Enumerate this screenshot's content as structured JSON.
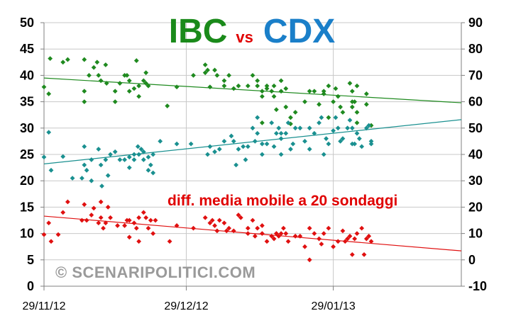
{
  "chart_data": {
    "type": "scatter",
    "title": {
      "left": "IBC",
      "mid": "vs",
      "right": "CDX",
      "left_color": "#1a8a1a",
      "mid_color": "#e00000",
      "right_color": "#1a7fc9"
    },
    "annotation": "diff. media mobile a 20 sondaggi",
    "annotation_color": "#e00000",
    "watermark": "© SCENARIPOLITICI.COM",
    "x_tick_labels": [
      "29/11/12",
      "29/12/12",
      "29/01/13"
    ],
    "x_tick_days": [
      0,
      30,
      61
    ],
    "xlim_days": [
      0,
      88
    ],
    "left_axis": {
      "ylim": [
        0,
        50
      ],
      "ticks": [
        0,
        5,
        10,
        15,
        20,
        25,
        30,
        35,
        40,
        45,
        50
      ]
    },
    "right_axis": {
      "ylim": [
        -10,
        90
      ],
      "ticks": [
        -10,
        0,
        10,
        20,
        30,
        40,
        50,
        60,
        70,
        80,
        90
      ]
    },
    "grid": true,
    "series": [
      {
        "color": "#1f8a1f",
        "axis": "left",
        "trend": [
          [
            0,
            39.5
          ],
          [
            88,
            34.8
          ]
        ],
        "points": [
          [
            0,
            37.8
          ],
          [
            1,
            36.5
          ],
          [
            1.3,
            43.2
          ],
          [
            4,
            42.5
          ],
          [
            5,
            43
          ],
          [
            8.5,
            43
          ],
          [
            8.5,
            37
          ],
          [
            8.5,
            35
          ],
          [
            9.5,
            40
          ],
          [
            10.5,
            41.5
          ],
          [
            11.2,
            42.5
          ],
          [
            11.5,
            40
          ],
          [
            12,
            39
          ],
          [
            13,
            42
          ],
          [
            13.2,
            38.5
          ],
          [
            16,
            38.5
          ],
          [
            15,
            37
          ],
          [
            15,
            35
          ],
          [
            17,
            40
          ],
          [
            18,
            39
          ],
          [
            17.5,
            40
          ],
          [
            18,
            37
          ],
          [
            19,
            37.5
          ],
          [
            19.5,
            42.8
          ],
          [
            20,
            38
          ],
          [
            21,
            39
          ],
          [
            21.5,
            40.5
          ],
          [
            20,
            36
          ],
          [
            21.5,
            38.5
          ],
          [
            22,
            38
          ],
          [
            26,
            34.2
          ],
          [
            28,
            37.8
          ],
          [
            31.5,
            40
          ],
          [
            34,
            42
          ],
          [
            34.5,
            41
          ],
          [
            34,
            40.5
          ],
          [
            36,
            41
          ],
          [
            36.5,
            40
          ],
          [
            35,
            37.8
          ],
          [
            38,
            39
          ],
          [
            38,
            38
          ],
          [
            39,
            40
          ],
          [
            40,
            37.5
          ],
          [
            41,
            38
          ],
          [
            43,
            38
          ],
          [
            44,
            40
          ],
          [
            45,
            39
          ],
          [
            45,
            38
          ],
          [
            46,
            37
          ],
          [
            46,
            36
          ],
          [
            47,
            38
          ],
          [
            47,
            37.5
          ],
          [
            48,
            37
          ],
          [
            48.5,
            38
          ],
          [
            46,
            31
          ],
          [
            48.5,
            36
          ],
          [
            49,
            33.5
          ],
          [
            50,
            39
          ],
          [
            50,
            37
          ],
          [
            51,
            37.5
          ],
          [
            51,
            34
          ],
          [
            52,
            32
          ],
          [
            52,
            30.8
          ],
          [
            53,
            33
          ],
          [
            55,
            35
          ],
          [
            56,
            37
          ],
          [
            57,
            37
          ],
          [
            58,
            34.5
          ],
          [
            59,
            37
          ],
          [
            59,
            36.5
          ],
          [
            60,
            38
          ],
          [
            60,
            32
          ],
          [
            61,
            35
          ],
          [
            61.5,
            37.5
          ],
          [
            62,
            36
          ],
          [
            62.5,
            34
          ],
          [
            63,
            33
          ],
          [
            64.5,
            38.5
          ],
          [
            65,
            37
          ],
          [
            65,
            35
          ],
          [
            65,
            34
          ],
          [
            65.5,
            35
          ],
          [
            66,
            31
          ],
          [
            66,
            33
          ],
          [
            66,
            38
          ],
          [
            68,
            36.5
          ],
          [
            68,
            34.5
          ],
          [
            69,
            30.5
          ]
        ]
      },
      {
        "color": "#1a9090",
        "axis": "left",
        "trend": [
          [
            0,
            23.2
          ],
          [
            88,
            31.6
          ]
        ],
        "points": [
          [
            0,
            24.5
          ],
          [
            1,
            29.2
          ],
          [
            1.5,
            22
          ],
          [
            4,
            24.6
          ],
          [
            6,
            20.5
          ],
          [
            8,
            20.5
          ],
          [
            8.5,
            26.5
          ],
          [
            8.5,
            23
          ],
          [
            9,
            22
          ],
          [
            10,
            24
          ],
          [
            10,
            20
          ],
          [
            11.5,
            26
          ],
          [
            12,
            23
          ],
          [
            12.2,
            19
          ],
          [
            13,
            24
          ],
          [
            13.5,
            21
          ],
          [
            14,
            25
          ],
          [
            15,
            25.5
          ],
          [
            16,
            24
          ],
          [
            17,
            24
          ],
          [
            18,
            24.5
          ],
          [
            18,
            22.5
          ],
          [
            19,
            25
          ],
          [
            19,
            24
          ],
          [
            19.8,
            26.5
          ],
          [
            20,
            25
          ],
          [
            20.5,
            26
          ],
          [
            21,
            25.5
          ],
          [
            21,
            24
          ],
          [
            22,
            24.5
          ],
          [
            22,
            22
          ],
          [
            22.5,
            23
          ],
          [
            23,
            25
          ],
          [
            23,
            21.5
          ],
          [
            24.5,
            27.5
          ],
          [
            28,
            27
          ],
          [
            31,
            27
          ],
          [
            34.5,
            25
          ],
          [
            35,
            26.5
          ],
          [
            36,
            25.5
          ],
          [
            37,
            26
          ],
          [
            38,
            27.5
          ],
          [
            39.5,
            28.5
          ],
          [
            40,
            27.5
          ],
          [
            40.5,
            23
          ],
          [
            41,
            26
          ],
          [
            42,
            26.5
          ],
          [
            42.5,
            24
          ],
          [
            43,
            26.5
          ],
          [
            44,
            30
          ],
          [
            44.5,
            27.5
          ],
          [
            45,
            32
          ],
          [
            45,
            29
          ],
          [
            46,
            27
          ],
          [
            46,
            25
          ],
          [
            47,
            27
          ],
          [
            48,
            31
          ],
          [
            48.5,
            26.5
          ],
          [
            49,
            29
          ],
          [
            49.5,
            30
          ],
          [
            50,
            28
          ],
          [
            50,
            29
          ],
          [
            50,
            25
          ],
          [
            51,
            29
          ],
          [
            51.5,
            31
          ],
          [
            52,
            26
          ],
          [
            52.5,
            27
          ],
          [
            53,
            30
          ],
          [
            54,
            30
          ],
          [
            55,
            27.5
          ],
          [
            56,
            26
          ],
          [
            56,
            30
          ],
          [
            57,
            29
          ],
          [
            58,
            31
          ],
          [
            58.5,
            32
          ],
          [
            59,
            25
          ],
          [
            59.5,
            28
          ],
          [
            60,
            27
          ],
          [
            61,
            29.5
          ],
          [
            61.5,
            32
          ],
          [
            62,
            30
          ],
          [
            62.5,
            27.5
          ],
          [
            63,
            28
          ],
          [
            64,
            30
          ],
          [
            64.5,
            31.5
          ],
          [
            65,
            30
          ],
          [
            65,
            27
          ],
          [
            65.5,
            27
          ],
          [
            66,
            29
          ],
          [
            66.5,
            28
          ],
          [
            67,
            26.5
          ],
          [
            68,
            30
          ],
          [
            68.5,
            30.5
          ],
          [
            69,
            27.5
          ],
          [
            69,
            27
          ]
        ]
      },
      {
        "color": "#e01010",
        "axis": "left",
        "trend": [
          [
            0,
            13.3
          ],
          [
            88,
            6.7
          ]
        ],
        "points": [
          [
            0,
            9.8
          ],
          [
            1,
            12
          ],
          [
            1.5,
            8.5
          ],
          [
            3,
            9.8
          ],
          [
            4,
            14
          ],
          [
            5,
            16
          ],
          [
            8,
            12.5
          ],
          [
            8.5,
            15.5
          ],
          [
            9,
            12.5
          ],
          [
            10,
            13.5
          ],
          [
            10.5,
            14.8
          ],
          [
            11.5,
            12
          ],
          [
            12,
            16
          ],
          [
            12,
            13
          ],
          [
            12.5,
            11
          ],
          [
            13,
            12
          ],
          [
            13.5,
            15
          ],
          [
            14,
            13
          ],
          [
            15.5,
            11.5
          ],
          [
            17,
            11.5
          ],
          [
            17.5,
            12.5
          ],
          [
            18,
            12.5
          ],
          [
            18,
            9.3
          ],
          [
            19,
            12
          ],
          [
            19.5,
            11
          ],
          [
            20,
            13
          ],
          [
            20,
            8.5
          ],
          [
            21,
            14
          ],
          [
            21.5,
            13
          ],
          [
            22,
            11
          ],
          [
            22.5,
            12.5
          ],
          [
            23,
            10
          ],
          [
            23.5,
            12.5
          ],
          [
            26.5,
            8.5
          ],
          [
            28,
            11.5
          ],
          [
            31.5,
            11
          ],
          [
            34,
            13
          ],
          [
            35,
            12
          ],
          [
            35.5,
            12.5
          ],
          [
            36,
            11.5
          ],
          [
            36.5,
            10.5
          ],
          [
            37,
            12.5
          ],
          [
            38,
            12
          ],
          [
            38.5,
            10.5
          ],
          [
            39,
            11
          ],
          [
            40,
            10.5
          ],
          [
            41,
            13.5
          ],
          [
            41.5,
            13
          ],
          [
            43,
            10
          ],
          [
            43,
            11
          ],
          [
            44,
            12.5
          ],
          [
            44.5,
            9.5
          ],
          [
            45,
            11
          ],
          [
            46,
            11.5
          ],
          [
            46,
            10
          ],
          [
            47,
            8.5
          ],
          [
            48,
            9.5
          ],
          [
            48.5,
            9
          ],
          [
            49,
            10
          ],
          [
            49,
            10
          ],
          [
            49.5,
            9.5
          ],
          [
            50,
            10
          ],
          [
            50.5,
            11
          ],
          [
            51,
            10
          ],
          [
            51.5,
            8.5
          ],
          [
            53,
            9.5
          ],
          [
            54,
            9.5
          ],
          [
            55,
            7.5
          ],
          [
            56,
            5
          ],
          [
            56,
            11
          ],
          [
            57,
            10
          ],
          [
            58,
            9
          ],
          [
            58.5,
            8
          ],
          [
            59,
            10
          ],
          [
            60,
            11
          ],
          [
            61,
            7.5
          ],
          [
            62,
            8.5
          ],
          [
            63,
            10.5
          ],
          [
            63.5,
            8.5
          ],
          [
            64,
            9
          ],
          [
            64.5,
            9.5
          ],
          [
            65,
            6
          ],
          [
            65.5,
            9
          ],
          [
            66,
            10
          ],
          [
            67,
            11
          ],
          [
            67.5,
            6
          ],
          [
            68,
            9
          ],
          [
            68.5,
            9.5
          ],
          [
            69,
            8.5
          ]
        ]
      }
    ]
  }
}
